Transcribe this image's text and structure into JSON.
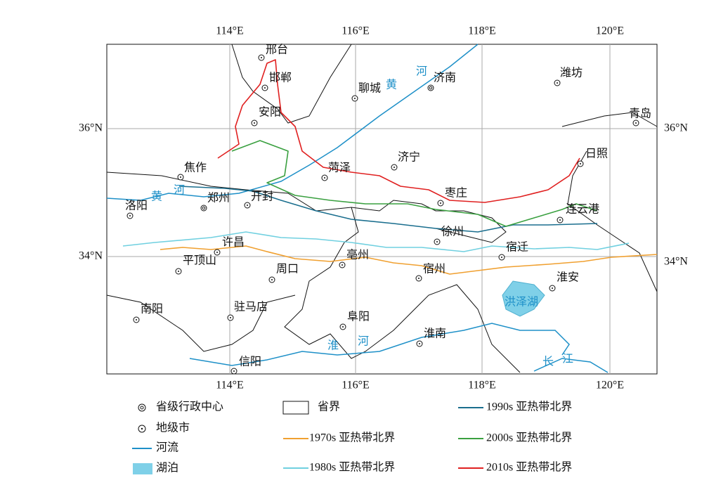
{
  "map": {
    "lon_labels_top": [
      "114°E",
      "116°E",
      "118°E",
      "120°E"
    ],
    "lon_labels_bottom": [
      "114°E",
      "116°E",
      "118°E",
      "120°E"
    ],
    "lat_labels_left": [
      "36°N",
      "34°N"
    ],
    "lat_labels_right": [
      "36°N",
      "34°N"
    ],
    "cities": [
      {
        "name": "邢台",
        "kind": "prefecture"
      },
      {
        "name": "邯郸",
        "kind": "prefecture"
      },
      {
        "name": "安阳",
        "kind": "prefecture"
      },
      {
        "name": "聊城",
        "kind": "prefecture"
      },
      {
        "name": "济南",
        "kind": "provincial"
      },
      {
        "name": "潍坊",
        "kind": "prefecture"
      },
      {
        "name": "青岛",
        "kind": "prefecture"
      },
      {
        "name": "日照",
        "kind": "prefecture"
      },
      {
        "name": "济宁",
        "kind": "prefecture"
      },
      {
        "name": "菏泽",
        "kind": "prefecture"
      },
      {
        "name": "焦作",
        "kind": "prefecture"
      },
      {
        "name": "郑州",
        "kind": "provincial"
      },
      {
        "name": "开封",
        "kind": "prefecture"
      },
      {
        "name": "洛阳",
        "kind": "prefecture"
      },
      {
        "name": "枣庄",
        "kind": "prefecture"
      },
      {
        "name": "连云港",
        "kind": "prefecture"
      },
      {
        "name": "徐州",
        "kind": "prefecture"
      },
      {
        "name": "许昌",
        "kind": "prefecture"
      },
      {
        "name": "平顶山",
        "kind": "prefecture"
      },
      {
        "name": "宿迁",
        "kind": "prefecture"
      },
      {
        "name": "亳州",
        "kind": "prefecture"
      },
      {
        "name": "周口",
        "kind": "prefecture"
      },
      {
        "name": "宿州",
        "kind": "prefecture"
      },
      {
        "name": "淮安",
        "kind": "prefecture"
      },
      {
        "name": "南阳",
        "kind": "prefecture"
      },
      {
        "name": "驻马店",
        "kind": "prefecture"
      },
      {
        "name": "阜阳",
        "kind": "prefecture"
      },
      {
        "name": "淮南",
        "kind": "prefecture"
      },
      {
        "name": "信阳",
        "kind": "prefecture"
      }
    ],
    "water_labels": [
      "黄",
      "河",
      "黄",
      "河",
      "淮",
      "河",
      "长",
      "江",
      "洪泽湖"
    ],
    "legend": {
      "provincial_center": "省级行政中心",
      "prefecture_city": "地级市",
      "river": "河流",
      "lake": "湖泊",
      "province_border": "省界",
      "b1970s": "1970s 亚热带北界",
      "b1980s": "1980s 亚热带北界",
      "b1990s": "1990s 亚热带北界",
      "b2000s": "2000s 亚热带北界",
      "b2010s": "2010s 亚热带北界"
    }
  }
}
